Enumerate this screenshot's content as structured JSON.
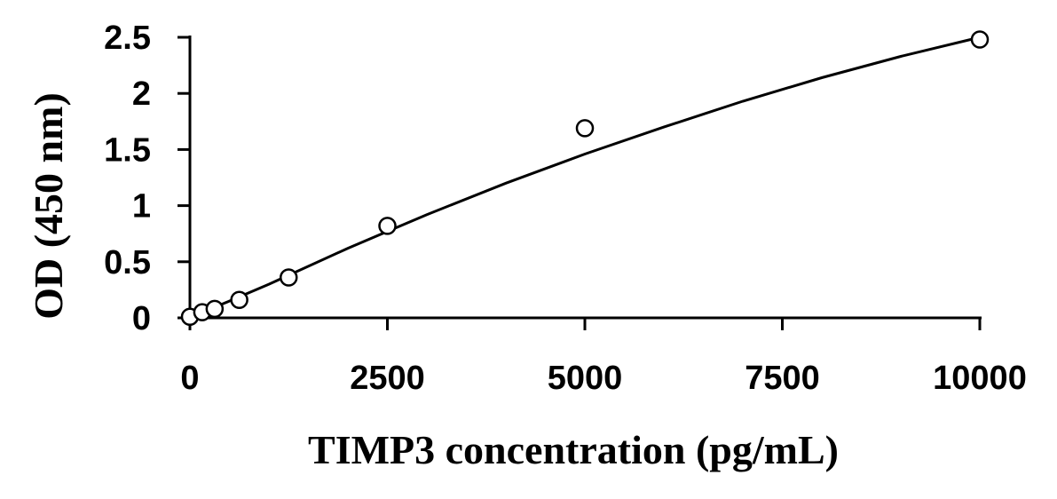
{
  "chart_data": {
    "type": "scatter",
    "title": "",
    "xlabel": "TIMP3 concentration (pg/mL)",
    "ylabel": "OD (450 nm)",
    "xlim": [
      0,
      10000
    ],
    "ylim": [
      0,
      2.5
    ],
    "x_ticks": [
      0,
      2500,
      5000,
      7500,
      10000
    ],
    "x_tick_labels": [
      "0",
      "2500",
      "5000",
      "7500",
      "10000"
    ],
    "y_ticks": [
      0,
      0.5,
      1,
      1.5,
      2,
      2.5
    ],
    "y_tick_labels": [
      "0",
      "0.5",
      "1",
      "1.5",
      "2",
      "2.5"
    ],
    "grid": false,
    "legend": "none",
    "series": [
      {
        "marker": "open-circle",
        "x": [
          0,
          156,
          313,
          625,
          1250,
          2500,
          5000,
          10000
        ],
        "y": [
          0.01,
          0.05,
          0.08,
          0.16,
          0.36,
          0.82,
          1.69,
          2.48
        ]
      }
    ],
    "trendline": {
      "type": "polynomial",
      "x": [
        0,
        1000,
        2000,
        3000,
        4000,
        5000,
        6000,
        7000,
        8000,
        9000,
        10000
      ],
      "y": [
        0.0,
        0.3,
        0.62,
        0.92,
        1.2,
        1.46,
        1.7,
        1.93,
        2.14,
        2.33,
        2.5
      ]
    }
  }
}
